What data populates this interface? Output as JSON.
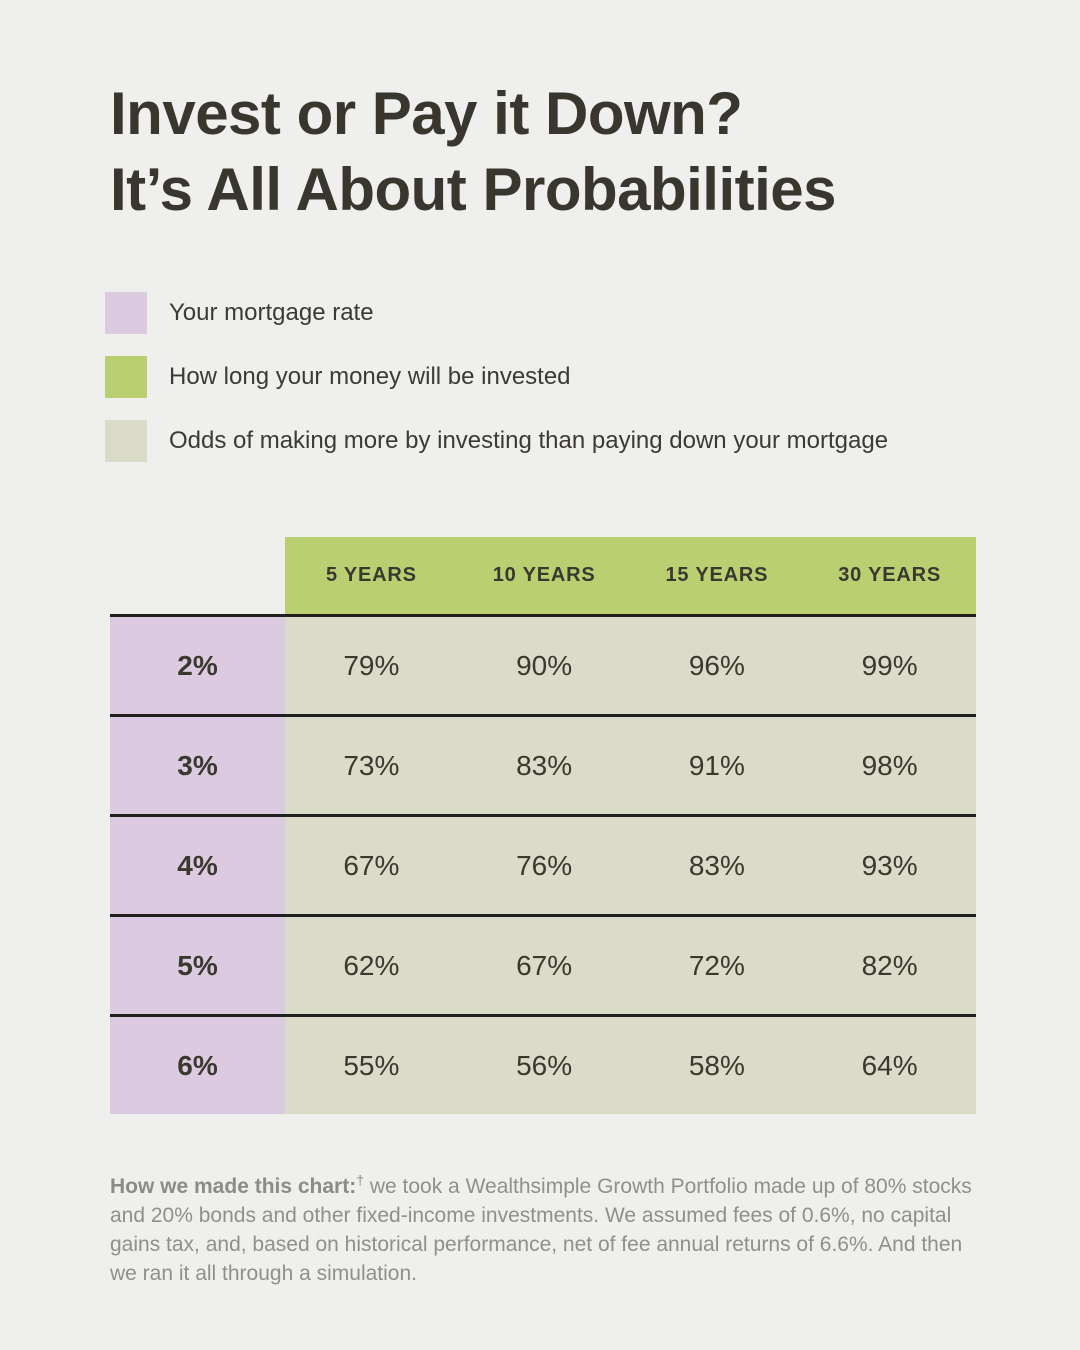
{
  "page": {
    "background_color": "#efefed",
    "title_line1": "Invest or Pay it Down?",
    "title_line2": "It’s All About Probabilities",
    "title_color": "#38362f"
  },
  "legend": {
    "items": [
      {
        "label": "Your mortgage rate",
        "swatch_color": "#dccae0"
      },
      {
        "label": "How long your money will be invested",
        "swatch_color": "#bacf72"
      },
      {
        "label": "Odds of making more by investing than paying down your mortgage",
        "swatch_color": "#dadcc9"
      }
    ]
  },
  "table": {
    "header_bg": "#bacf72",
    "rate_col_bg": "#dccae0",
    "data_cell_bg": "#dadcc9",
    "divider_color": "#20201e",
    "column_headers": [
      "5 YEARS",
      "10 YEARS",
      "15 YEARS",
      "30 YEARS"
    ],
    "rows": [
      {
        "rate": "2%",
        "values": [
          "79%",
          "90%",
          "96%",
          "99%"
        ]
      },
      {
        "rate": "3%",
        "values": [
          "73%",
          "83%",
          "91%",
          "98%"
        ]
      },
      {
        "rate": "4%",
        "values": [
          "67%",
          "76%",
          "83%",
          "93%"
        ]
      },
      {
        "rate": "5%",
        "values": [
          "62%",
          "67%",
          "72%",
          "82%"
        ]
      },
      {
        "rate": "6%",
        "values": [
          "55%",
          "56%",
          "58%",
          "64%"
        ]
      }
    ]
  },
  "footnote": {
    "lead": "How we made this chart:",
    "dagger": "†",
    "body": " we took a Wealthsimple Growth Portfolio made up of 80% stocks and 20% bonds and other fixed-income investments. We assumed fees of 0.6%, no capital gains tax, and, based on historical performance, net of fee annual returns of 6.6%. And then we ran it all through a simulation."
  },
  "chart_data": {
    "type": "table",
    "title": "Invest or Pay it Down? It’s All About Probabilities",
    "row_axis_label": "Your mortgage rate",
    "column_axis_label": "How long your money will be invested",
    "cell_meaning": "Odds of making more by investing than paying down your mortgage (%)",
    "columns_years": [
      5,
      10,
      15,
      30
    ],
    "rows": [
      {
        "mortgage_rate_pct": 2,
        "odds_pct": [
          79,
          90,
          96,
          99
        ]
      },
      {
        "mortgage_rate_pct": 3,
        "odds_pct": [
          73,
          83,
          91,
          98
        ]
      },
      {
        "mortgage_rate_pct": 4,
        "odds_pct": [
          67,
          76,
          83,
          93
        ]
      },
      {
        "mortgage_rate_pct": 5,
        "odds_pct": [
          62,
          67,
          72,
          82
        ]
      },
      {
        "mortgage_rate_pct": 6,
        "odds_pct": [
          55,
          56,
          58,
          64
        ]
      }
    ]
  }
}
